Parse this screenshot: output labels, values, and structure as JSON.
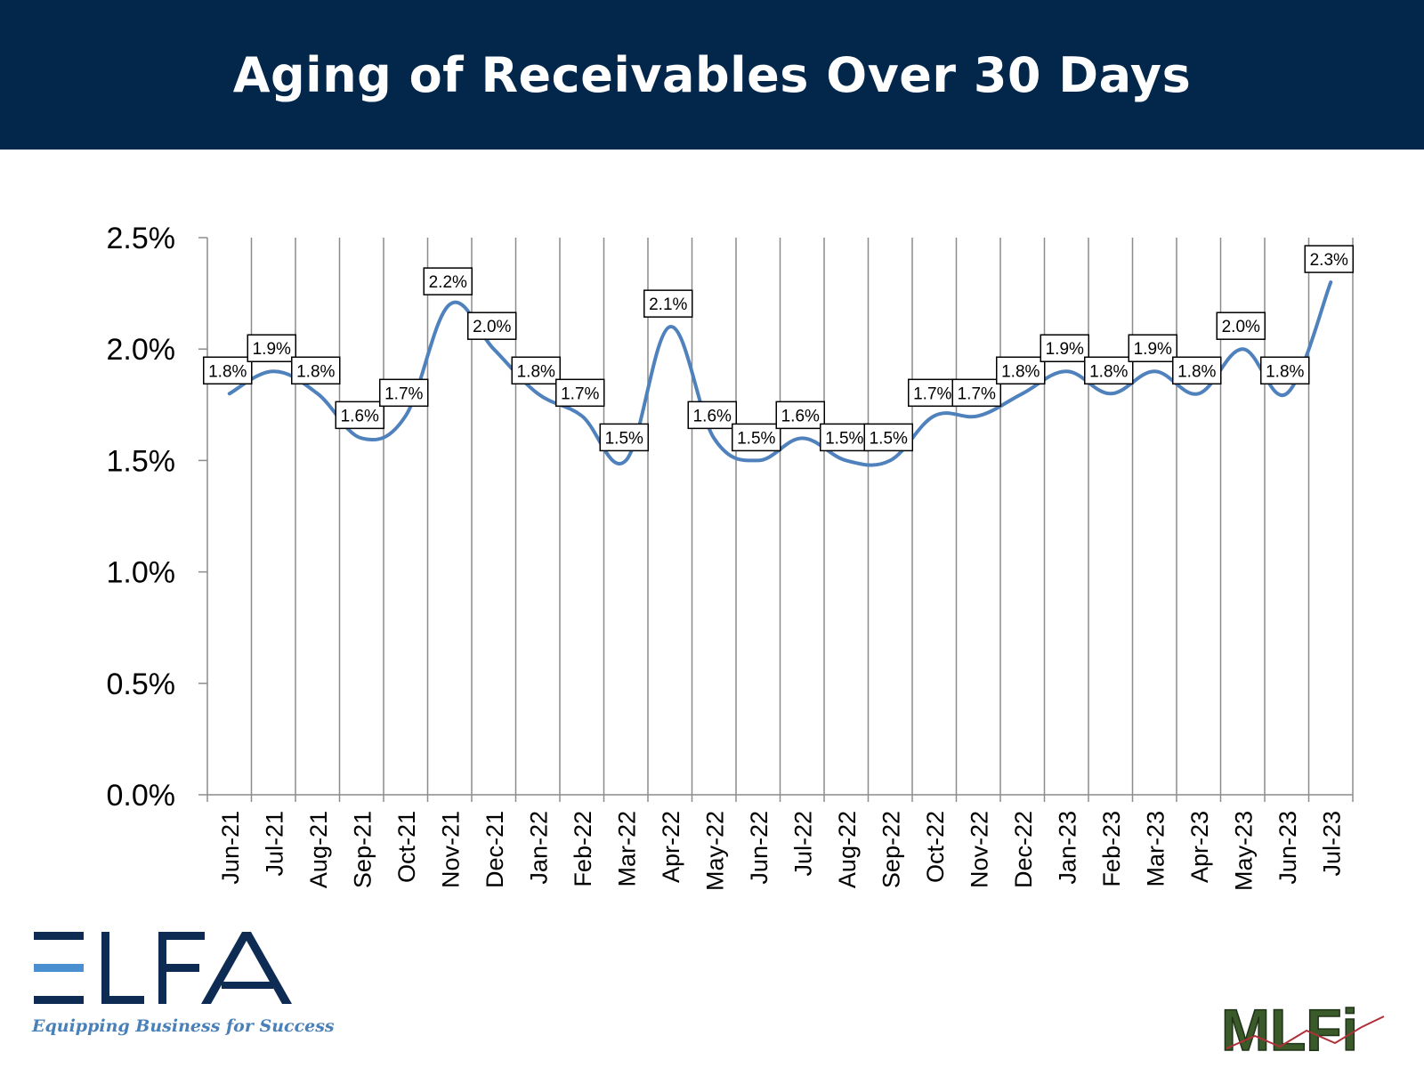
{
  "header": {
    "title": "Aging of Receivables Over 30 Days"
  },
  "chart_data": {
    "type": "line",
    "title": "Aging of Receivables Over 30 Days",
    "categories": [
      "Jun-21",
      "Jul-21",
      "Aug-21",
      "Sep-21",
      "Oct-21",
      "Nov-21",
      "Dec-21",
      "Jan-22",
      "Feb-22",
      "Mar-22",
      "Apr-22",
      "May-22",
      "Jun-22",
      "Jul-22",
      "Aug-22",
      "Sep-22",
      "Oct-22",
      "Nov-22",
      "Dec-22",
      "Jan-23",
      "Feb-23",
      "Mar-23",
      "Apr-23",
      "May-23",
      "Jun-23",
      "Jul-23"
    ],
    "values": [
      1.8,
      1.9,
      1.8,
      1.6,
      1.7,
      2.2,
      2.0,
      1.8,
      1.7,
      1.5,
      2.1,
      1.6,
      1.5,
      1.6,
      1.5,
      1.5,
      1.7,
      1.7,
      1.8,
      1.9,
      1.8,
      1.9,
      1.8,
      2.0,
      1.8,
      2.3
    ],
    "data_labels": [
      "1.8%",
      "1.9%",
      "1.8%",
      "1.6%",
      "1.7%",
      "2.2%",
      "2.0%",
      "1.8%",
      "1.7%",
      "1.5%",
      "2.1%",
      "1.6%",
      "1.5%",
      "1.6%",
      "1.5%",
      "1.5%",
      "1.7%",
      "1.7%",
      "1.8%",
      "1.9%",
      "1.8%",
      "1.9%",
      "1.8%",
      "2.0%",
      "1.8%",
      "2.3%"
    ],
    "y_ticks": [
      0,
      0.5,
      1.0,
      1.5,
      2.0,
      2.5
    ],
    "y_tick_labels": [
      "0.0%",
      "0.5%",
      "1.0%",
      "1.5%",
      "2.0%",
      "2.5%"
    ],
    "ylim": [
      0,
      2.5
    ],
    "xlabel": "",
    "ylabel": "",
    "grid": {
      "vertical": true,
      "horizontal": false
    },
    "line_color": "#4f81bd",
    "legend": "none"
  },
  "logos": {
    "elfa": {
      "text": "ELFA",
      "tagline": "Equipping Business for Success",
      "color": "#0e2c53",
      "accent": "#4a90d0"
    },
    "mlfi": {
      "text": "MLFi",
      "color": "#3a5a2a"
    }
  }
}
